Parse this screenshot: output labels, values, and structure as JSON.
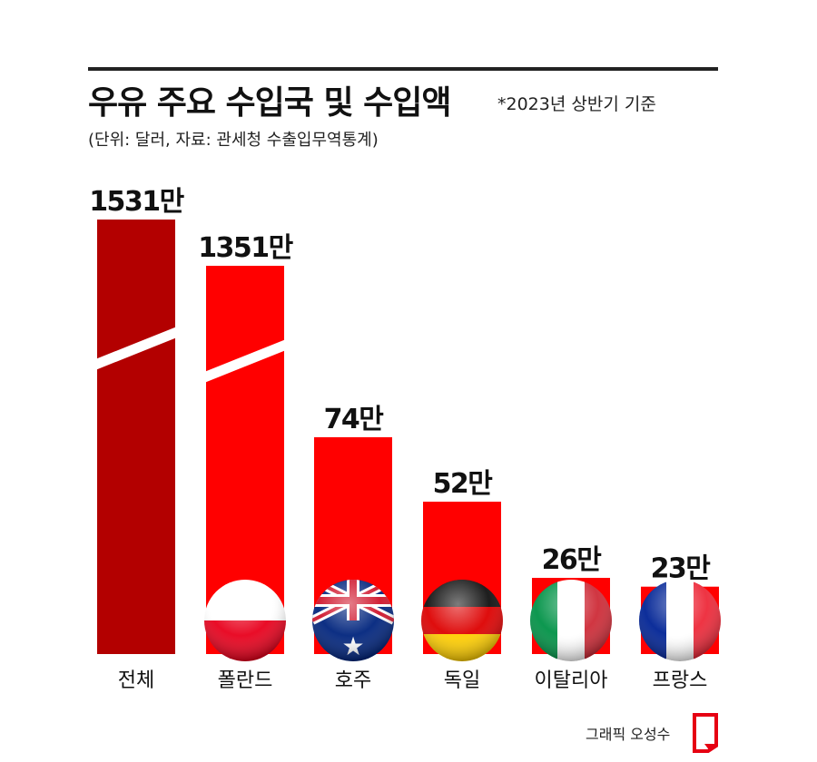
{
  "header": {
    "title": "우유 주요 수입국 및 수입액",
    "basis_note": "*2023년 상반기 기준",
    "source_note": "(단위: 달러, 자료: 관세청 수출입무역통계)"
  },
  "chart_data": {
    "type": "bar",
    "title": "우유 주요 수입국 및 수입액",
    "unit": "달러",
    "categories": [
      "전체",
      "폴란드",
      "호주",
      "독일",
      "이탈리아",
      "프랑스"
    ],
    "values": [
      15310000,
      13510000,
      740000,
      520000,
      260000,
      230000
    ],
    "value_labels": [
      "1531만",
      "1351만",
      "74만",
      "52만",
      "26만",
      "23만"
    ],
    "broken_axis_bars": [
      0,
      1
    ],
    "flags": [
      "",
      "poland-flag-icon",
      "australia-flag-icon",
      "germany-flag-icon",
      "italy-flag-icon",
      "france-flag-icon"
    ],
    "colors": {
      "total_bar": "#b30000",
      "country_bar": "#ff0000"
    },
    "grid": false,
    "legend": "none"
  },
  "footer": {
    "credit": "그래픽 오성수"
  }
}
